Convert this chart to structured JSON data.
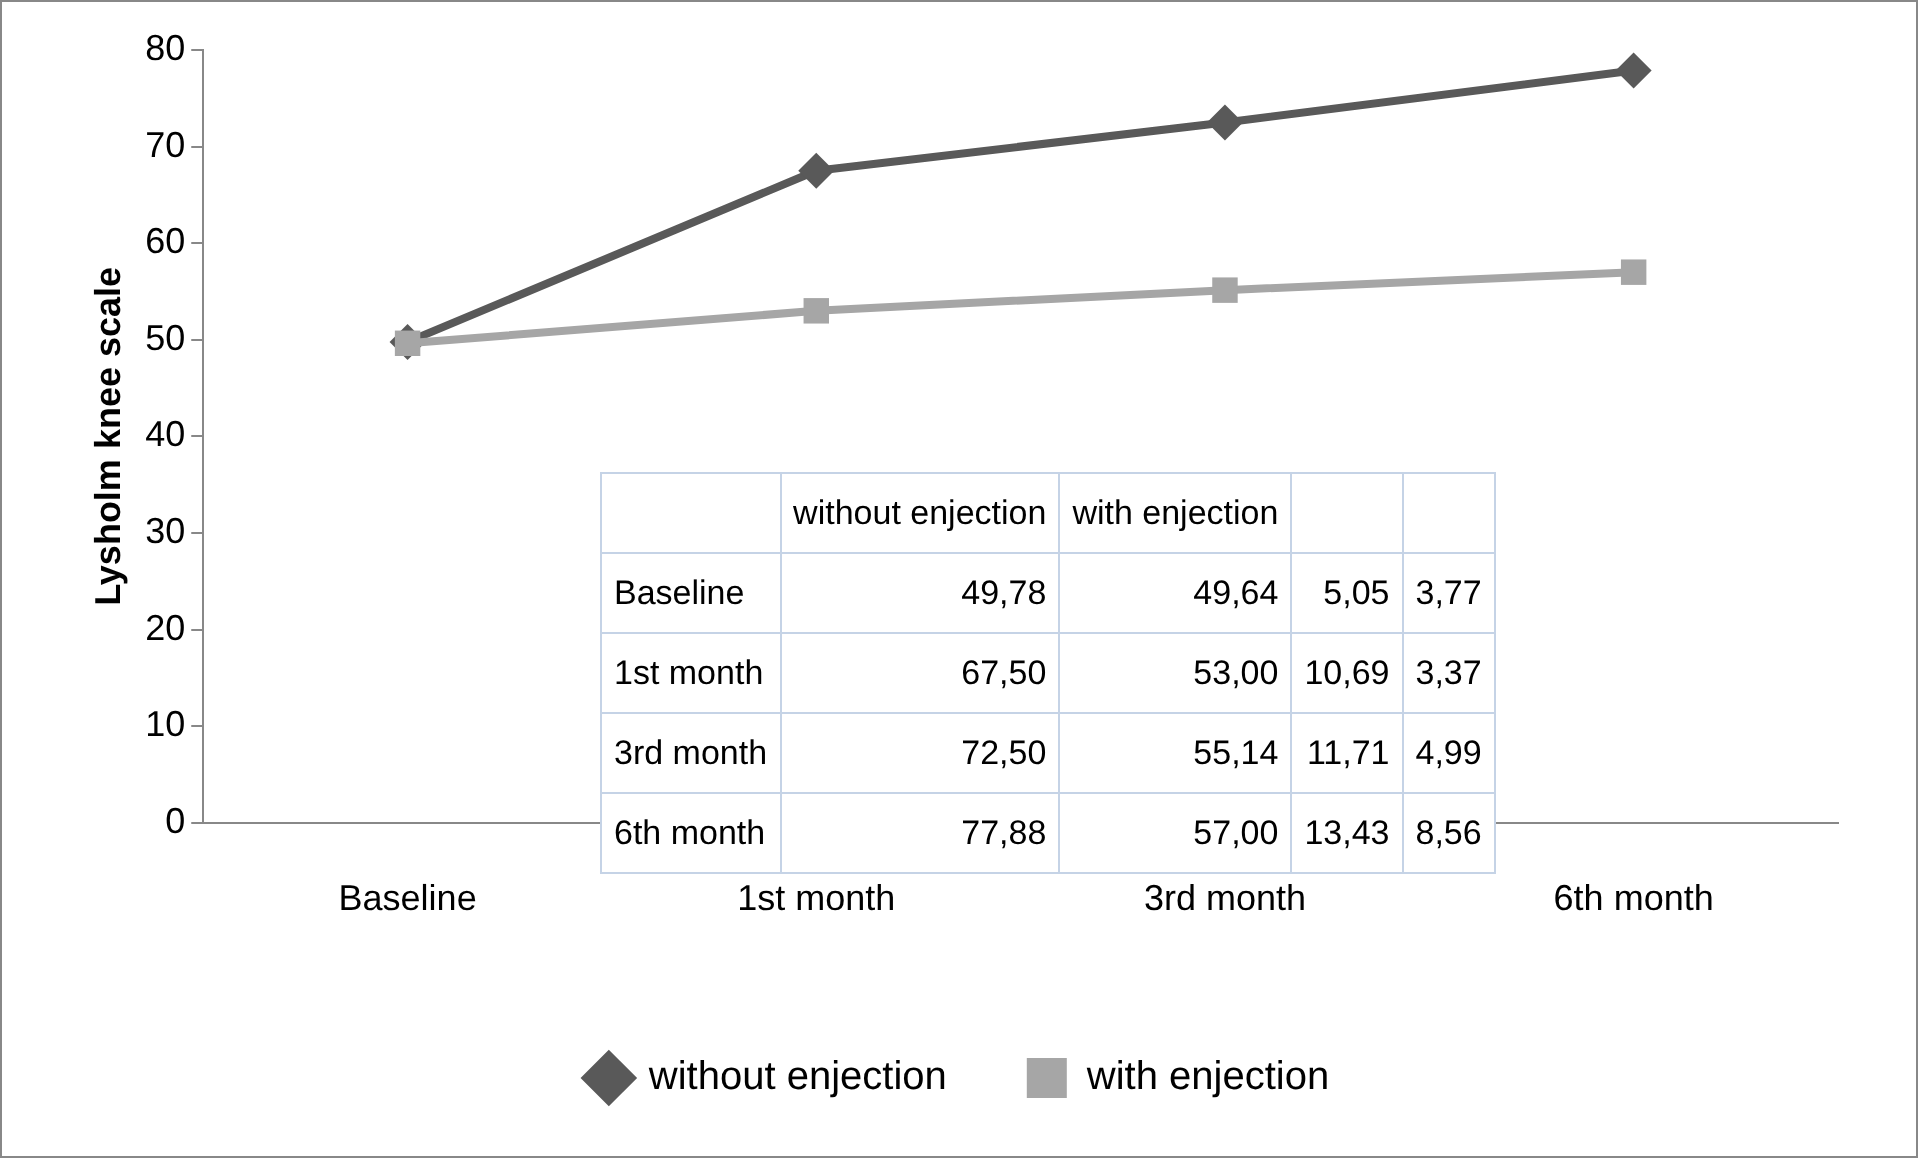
{
  "chart_data": {
    "type": "line",
    "ylabel": "Lysholm knee scale",
    "categories": [
      "Baseline",
      "1st month",
      "3rd month",
      "6th month"
    ],
    "series": [
      {
        "name": "without enjection",
        "color": "#595959",
        "marker": "diamond",
        "values": [
          49.78,
          67.5,
          72.5,
          77.88
        ]
      },
      {
        "name": "with enjection",
        "color": "#a6a6a6",
        "marker": "square",
        "values": [
          49.64,
          53,
          55.14,
          57
        ]
      }
    ],
    "annotations": [
      "49,78",
      "49,64",
      "5,05",
      "3,77",
      "67,50",
      "53,00",
      "10,69",
      "3,37",
      "72,50",
      "55,14",
      "11,71",
      "4,99",
      "77,88",
      "57,00",
      "13,43",
      "8,56"
    ],
    "ylim": [
      0,
      80
    ],
    "yticks": [
      0,
      10,
      20,
      30,
      40,
      50,
      60,
      70,
      80
    ],
    "grid": false,
    "legend": "bottom"
  }
}
